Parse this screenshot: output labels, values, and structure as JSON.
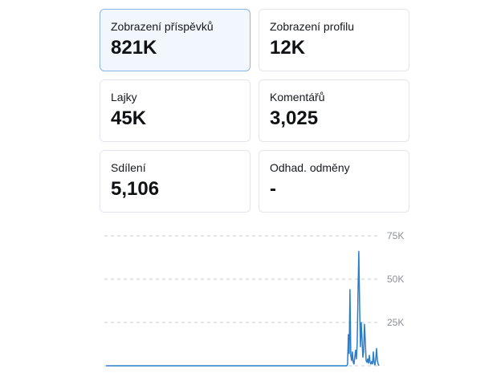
{
  "stats": {
    "post_views": {
      "label": "Zobrazení příspěvků",
      "value": "821K"
    },
    "profile_views": {
      "label": "Zobrazení profilu",
      "value": "12K"
    },
    "likes": {
      "label": "Lajky",
      "value": "45K"
    },
    "comments": {
      "label": "Komentářů",
      "value": "3,025"
    },
    "shares": {
      "label": "Sdílení",
      "value": "5,106"
    },
    "estimated_rewards": {
      "label": "Odhad. odměny",
      "value": "-"
    }
  },
  "colors": {
    "line": "#2a7fc9",
    "grid": "#c9ccd1",
    "selected_border": "#8bb7e6"
  },
  "chart_data": {
    "type": "line",
    "y_ticks": [
      "25K",
      "50K",
      "75K"
    ],
    "ylim": [
      0,
      75000
    ],
    "grid": true,
    "series": [
      {
        "values": [
          0,
          0,
          0,
          0,
          0,
          0,
          0,
          0,
          0,
          0,
          0,
          0,
          0,
          0,
          0,
          0,
          0,
          0,
          0,
          0,
          0,
          0,
          0,
          0,
          0,
          0,
          0,
          0,
          0,
          0,
          0,
          0,
          0,
          0,
          0,
          0,
          0,
          0,
          0,
          0,
          0,
          0,
          0,
          0,
          0,
          0,
          0,
          0,
          0,
          0,
          0,
          0,
          0,
          0,
          0,
          0,
          0,
          0,
          0,
          0,
          0,
          0,
          0,
          0,
          0,
          0,
          0,
          0,
          0,
          0,
          0,
          0,
          0,
          0,
          0,
          0,
          0,
          0,
          0,
          0,
          0,
          0,
          0,
          0,
          0,
          0,
          0,
          0,
          0,
          0,
          0,
          0,
          0,
          0,
          0,
          0,
          0,
          0,
          0,
          0,
          0,
          0,
          0,
          0,
          0,
          0,
          0,
          0,
          0,
          0,
          0,
          0,
          0,
          0,
          0,
          0,
          0,
          0,
          0,
          0,
          0,
          0,
          0,
          0,
          0,
          0,
          0,
          0,
          0,
          0,
          0,
          0,
          0,
          0,
          0,
          0,
          0,
          0,
          0,
          0,
          0,
          0,
          0,
          0,
          0,
          0,
          0,
          0,
          0,
          0,
          0,
          0,
          0,
          0,
          0,
          0,
          0,
          0,
          0,
          0,
          0,
          0,
          0,
          0,
          0,
          0,
          0,
          0,
          0,
          0,
          0,
          0,
          0,
          0,
          0,
          0,
          0,
          0,
          0,
          0,
          0,
          0,
          0,
          0,
          0,
          0,
          0,
          0,
          0,
          0,
          0,
          0,
          0,
          0,
          0,
          0,
          0,
          0,
          0,
          0,
          0,
          0,
          0,
          0,
          0,
          0,
          0,
          0,
          0,
          0,
          0,
          0,
          0,
          0,
          0,
          0,
          0,
          0,
          0,
          0,
          0,
          0,
          0,
          0,
          0,
          0,
          0,
          0,
          0,
          0,
          0,
          0,
          0,
          0,
          0,
          0,
          0,
          0,
          0,
          0,
          0,
          0,
          0,
          0,
          0,
          0,
          0,
          0,
          0,
          0,
          0,
          0,
          0,
          0,
          0,
          0,
          0,
          0,
          0,
          0,
          0,
          0,
          0,
          0,
          0,
          0,
          0,
          0,
          0,
          0,
          0,
          0,
          0,
          0,
          0,
          0,
          0,
          0,
          0,
          0,
          0,
          0,
          0,
          0,
          0,
          0,
          0,
          0,
          0,
          0,
          0,
          0,
          0,
          0,
          0,
          0,
          0,
          0,
          0,
          0,
          1000,
          18000,
          7000,
          44000,
          6000,
          3000,
          8000,
          2000,
          1000,
          5000,
          9000,
          4000,
          13000,
          42000,
          66000,
          35000,
          11000,
          25000,
          16000,
          5000,
          8000,
          24000,
          15000,
          3000,
          2000,
          4000,
          1500,
          6000,
          2000,
          1000,
          2500,
          1000,
          8000,
          2000,
          500,
          4000,
          10000,
          3000,
          1000,
          0
        ]
      }
    ]
  }
}
